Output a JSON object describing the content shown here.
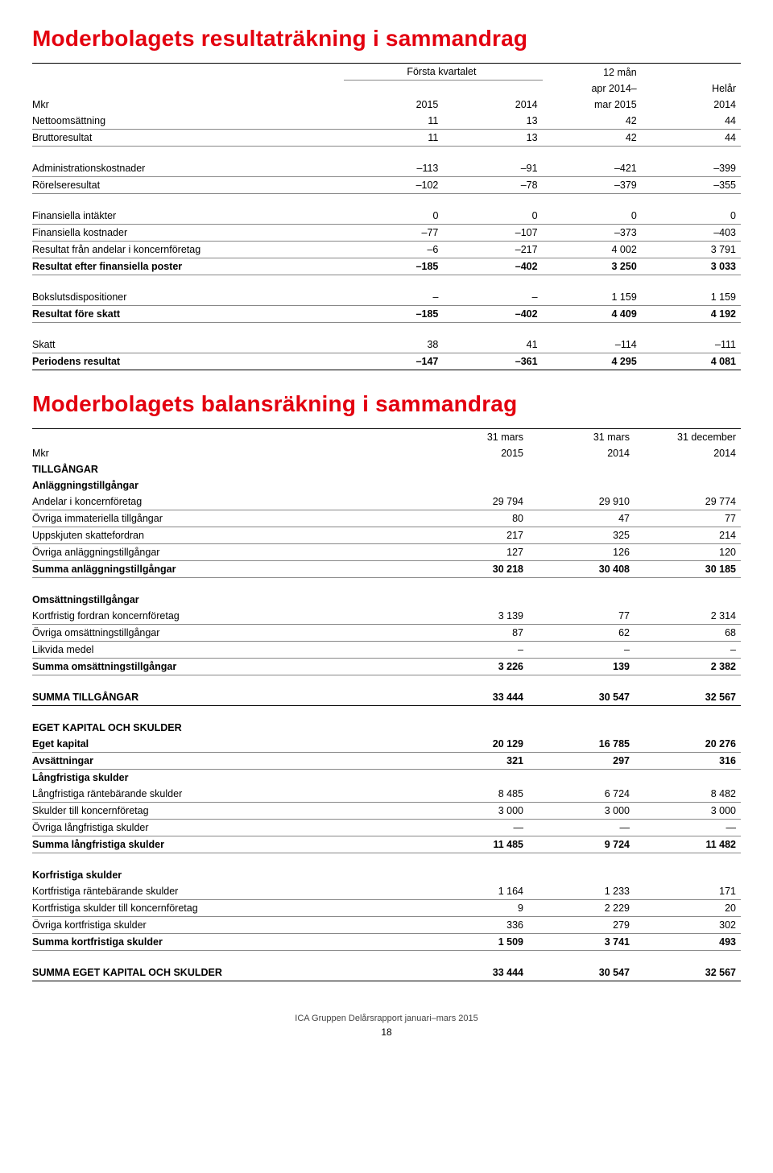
{
  "title1": "Moderbolagets resultaträkning i sammandrag",
  "title2": "Moderbolagets balansräkning i sammandrag",
  "t1": {
    "unit": "Mkr",
    "groupA": "Första kvartalet",
    "colA1": "2015",
    "colA2": "2014",
    "colB1": "12 mån",
    "colB2": "apr 2014–",
    "colB3": "mar 2015",
    "colC1": "Helår",
    "colC2": "2014",
    "rows": [
      {
        "l": "Nettoomsättning",
        "a": "11",
        "b": "13",
        "c": "42",
        "d": "44",
        "cls": "row-line"
      },
      {
        "l": "Bruttoresultat",
        "a": "11",
        "b": "13",
        "c": "42",
        "d": "44",
        "cls": "row-line"
      },
      {
        "gap": true
      },
      {
        "l": "Administrationskostnader",
        "a": "–113",
        "b": "–91",
        "c": "–421",
        "d": "–399",
        "cls": "row-line"
      },
      {
        "l": "Rörelseresultat",
        "a": "–102",
        "b": "–78",
        "c": "–379",
        "d": "–355",
        "cls": "row-line"
      },
      {
        "gap": true
      },
      {
        "l": "Finansiella intäkter",
        "a": "0",
        "b": "0",
        "c": "0",
        "d": "0",
        "cls": "row-line"
      },
      {
        "l": "Finansiella kostnader",
        "a": "–77",
        "b": "–107",
        "c": "–373",
        "d": "–403",
        "cls": "row-line"
      },
      {
        "l": "Resultat från andelar i koncernföretag",
        "a": "–6",
        "b": "–217",
        "c": "4 002",
        "d": "3 791",
        "cls": "row-line"
      },
      {
        "l": "Resultat efter finansiella poster",
        "a": "–185",
        "b": "–402",
        "c": "3 250",
        "d": "3 033",
        "cls": "bold row-line"
      },
      {
        "gap": true
      },
      {
        "l": "Bokslutsdispositioner",
        "a": "–",
        "b": "–",
        "c": "1 159",
        "d": "1 159",
        "cls": "row-line"
      },
      {
        "l": "Resultat före skatt",
        "a": "–185",
        "b": "–402",
        "c": "4 409",
        "d": "4 192",
        "cls": "bold row-line"
      },
      {
        "gap": true
      },
      {
        "l": "Skatt",
        "a": "38",
        "b": "41",
        "c": "–114",
        "d": "–111",
        "cls": "row-line"
      },
      {
        "l": "Periodens resultat",
        "a": "–147",
        "b": "–361",
        "c": "4 295",
        "d": "4 081",
        "cls": "bold row-line-dark"
      }
    ]
  },
  "t2": {
    "unit": "Mkr",
    "c1a": "31 mars",
    "c1b": "2015",
    "c2a": "31 mars",
    "c2b": "2014",
    "c3a": "31 december",
    "c3b": "2014",
    "rows": [
      {
        "l": "TILLGÅNGAR",
        "a": "",
        "b": "",
        "c": "",
        "cls": "section"
      },
      {
        "l": "Anläggningstillgångar",
        "a": "",
        "b": "",
        "c": "",
        "cls": "subhead"
      },
      {
        "l": "Andelar i koncernföretag",
        "a": "29 794",
        "b": "29 910",
        "c": "29 774",
        "cls": "row-line"
      },
      {
        "l": "Övriga immateriella tillgångar",
        "a": "80",
        "b": "47",
        "c": "77",
        "cls": "row-line"
      },
      {
        "l": "Uppskjuten skattefordran",
        "a": "217",
        "b": "325",
        "c": "214",
        "cls": "row-line"
      },
      {
        "l": "Övriga anläggningstillgångar",
        "a": "127",
        "b": "126",
        "c": "120",
        "cls": "row-line"
      },
      {
        "l": "Summa anläggningstillgångar",
        "a": "30 218",
        "b": "30 408",
        "c": "30 185",
        "cls": "bold row-line"
      },
      {
        "gap": true
      },
      {
        "l": "Omsättningstillgångar",
        "a": "",
        "b": "",
        "c": "",
        "cls": "subhead"
      },
      {
        "l": "Kortfristig fordran koncernföretag",
        "a": "3 139",
        "b": "77",
        "c": "2 314",
        "cls": "row-line"
      },
      {
        "l": "Övriga omsättningstillgångar",
        "a": "87",
        "b": "62",
        "c": "68",
        "cls": "row-line"
      },
      {
        "l": "Likvida medel",
        "a": "–",
        "b": "–",
        "c": "–",
        "cls": "row-line"
      },
      {
        "l": "Summa omsättningstillgångar",
        "a": "3 226",
        "b": "139",
        "c": "2 382",
        "cls": "bold row-line"
      },
      {
        "gap": true
      },
      {
        "l": "SUMMA TILLGÅNGAR",
        "a": "33 444",
        "b": "30 547",
        "c": "32 567",
        "cls": "bold row-line-dark"
      },
      {
        "gap": true
      },
      {
        "l": "EGET KAPITAL OCH SKULDER",
        "a": "",
        "b": "",
        "c": "",
        "cls": "section"
      },
      {
        "l": "Eget kapital",
        "a": "20 129",
        "b": "16 785",
        "c": "20 276",
        "cls": "bold row-line"
      },
      {
        "l": "Avsättningar",
        "a": "321",
        "b": "297",
        "c": "316",
        "cls": "bold row-line"
      },
      {
        "l": "Långfristiga skulder",
        "a": "",
        "b": "",
        "c": "",
        "cls": "subhead"
      },
      {
        "l": "Långfristiga räntebärande skulder",
        "a": "8 485",
        "b": "6 724",
        "c": "8 482",
        "cls": "row-line"
      },
      {
        "l": "Skulder till koncernföretag",
        "a": "3 000",
        "b": "3 000",
        "c": "3 000",
        "cls": "row-line"
      },
      {
        "l": "Övriga långfristiga skulder",
        "a": "—",
        "b": "—",
        "c": "—",
        "cls": "row-line"
      },
      {
        "l": "Summa långfristiga skulder",
        "a": "11 485",
        "b": "9 724",
        "c": "11 482",
        "cls": "bold row-line"
      },
      {
        "gap": true
      },
      {
        "l": "Korfristiga skulder",
        "a": "",
        "b": "",
        "c": "",
        "cls": "subhead"
      },
      {
        "l": "Kortfristiga räntebärande skulder",
        "a": "1 164",
        "b": "1 233",
        "c": "171",
        "cls": "row-line"
      },
      {
        "l": "Kortfristiga skulder till koncernföretag",
        "a": "9",
        "b": "2 229",
        "c": "20",
        "cls": "row-line"
      },
      {
        "l": "Övriga kortfristiga skulder",
        "a": "336",
        "b": "279",
        "c": "302",
        "cls": "row-line"
      },
      {
        "l": "Summa kortfristiga skulder",
        "a": "1 509",
        "b": "3 741",
        "c": "493",
        "cls": "bold row-line"
      },
      {
        "gap": true
      },
      {
        "l": "SUMMA EGET KAPITAL OCH SKULDER",
        "a": "33 444",
        "b": "30 547",
        "c": "32 567",
        "cls": "bold row-line-dark"
      }
    ]
  },
  "footer": "ICA Gruppen Delårsrapport januari–mars 2015",
  "page": "18"
}
